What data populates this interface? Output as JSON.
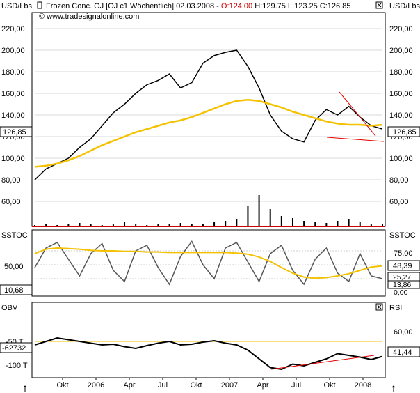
{
  "header": {
    "unit_left": "USD/Lbs",
    "unit_right": "USD/Lbs",
    "title_main": "Frozen Conc. OJ [OJ c1  Wöchentlich] 02.03.2008 - ",
    "open": "O:124.00",
    "high": " H:129.75",
    "low": " L:123.25",
    "close": " C:126.85",
    "source": "© www.tradesignalonline.com"
  },
  "colors": {
    "price_bars": "#000000",
    "bollinger": "#f0c000",
    "ma": "#f4c200",
    "envelope": "#ffffff",
    "panel_bg": "#ffffff",
    "axis_red": "#cc0000",
    "trend_red": "#e00000"
  },
  "price_panel": {
    "y_ticks": [
      "220,00",
      "200,00",
      "180,00",
      "160,00",
      "140,00",
      "120,00",
      "100,00",
      "80,00",
      "60,00"
    ],
    "last_value": "126,85"
  },
  "sstoc_panel": {
    "label_left": "SSTOC",
    "label_right": "SSTOC",
    "y_ticks_left": [
      "50,00"
    ],
    "y_ticks_right": [
      "75,00",
      "50,00",
      "25,00",
      "0,00"
    ],
    "current_left": "10,68",
    "current_right_1": "48,39",
    "current_right_2": "25,27",
    "current_right_3": "13,86"
  },
  "obv_panel": {
    "label_left": "OBV",
    "label_right": "RSI",
    "y_ticks_left": [
      "-50 T",
      "-100 T"
    ],
    "y_ticks_right": [
      "60,00"
    ],
    "current_left": "-62732",
    "current_right": "41,44"
  },
  "x_axis": {
    "labels": [
      "Okt",
      "2006",
      "Apr",
      "Jul",
      "Okt",
      "2007",
      "Apr",
      "Jul",
      "Okt",
      "2008"
    ]
  },
  "chart_data": [
    {
      "type": "line",
      "title": "Frozen Conc. OJ [OJ c1 Wöchentlich]",
      "ylabel": "USD/Lbs",
      "ylim": [
        40,
        235
      ],
      "x": [
        "2005-07",
        "2005-08",
        "2005-09",
        "2005-10",
        "2005-11",
        "2005-12",
        "2006-01",
        "2006-02",
        "2006-03",
        "2006-04",
        "2006-05",
        "2006-06",
        "2006-07",
        "2006-08",
        "2006-09",
        "2006-10",
        "2006-11",
        "2006-12",
        "2007-01",
        "2007-02",
        "2007-03",
        "2007-04",
        "2007-05",
        "2007-06",
        "2007-07",
        "2007-08",
        "2007-09",
        "2007-10",
        "2007-11",
        "2007-12",
        "2008-01",
        "2008-02"
      ],
      "series": [
        {
          "values": [
            80,
            90,
            95,
            100,
            110,
            118,
            130,
            142,
            150,
            160,
            168,
            172,
            178,
            165,
            170,
            188,
            195,
            198,
            200,
            185,
            165,
            140,
            125,
            118,
            115,
            135,
            145,
            140,
            148,
            138,
            130,
            127
          ]
        },
        {
          "values": [
            92,
            93,
            95,
            98,
            102,
            107,
            112,
            116,
            120,
            124,
            127,
            130,
            133,
            135,
            138,
            142,
            146,
            150,
            153,
            154,
            153,
            150,
            147,
            143,
            140,
            137,
            134,
            132,
            131,
            131,
            130,
            131
          ]
        }
      ],
      "volume": [
        2,
        3,
        2,
        4,
        5,
        3,
        2,
        4,
        6,
        3,
        2,
        4,
        3,
        5,
        4,
        3,
        6,
        8,
        10,
        30,
        45,
        25,
        15,
        12,
        8,
        6,
        5,
        8,
        10,
        6,
        4,
        3
      ]
    },
    {
      "type": "line",
      "title": "SSTOC",
      "ylim": [
        0,
        100
      ],
      "series": [
        {
          "values": [
            45,
            80,
            90,
            60,
            30,
            70,
            88,
            40,
            20,
            75,
            85,
            45,
            15,
            65,
            92,
            50,
            25,
            80,
            90,
            55,
            20,
            70,
            85,
            40,
            15,
            60,
            80,
            35,
            20,
            70,
            30,
            25
          ]
        },
        {
          "values": [
            70,
            78,
            80,
            79,
            78,
            76,
            75,
            75,
            74,
            74,
            73,
            73,
            72,
            72,
            72,
            72,
            72,
            72,
            71,
            69,
            64,
            56,
            45,
            35,
            28,
            26,
            27,
            30,
            34,
            40,
            46,
            48
          ]
        }
      ]
    },
    {
      "type": "line",
      "title": "OBV / RSI",
      "series": [
        {
          "values": [
            -30,
            -20,
            -10,
            -15,
            -20,
            -25,
            -30,
            -28,
            -35,
            -40,
            -32,
            -25,
            -20,
            -30,
            -28,
            -22,
            -18,
            -25,
            -30,
            -45,
            -70,
            -95,
            -100,
            -85,
            -90,
            -80,
            -70,
            -55,
            -60,
            -65,
            -72,
            -63
          ]
        },
        {
          "values": [
            55,
            60,
            62,
            58,
            55,
            60,
            62,
            58,
            56,
            60,
            63,
            58,
            55,
            60,
            62,
            56,
            52,
            58,
            60,
            50,
            38,
            30,
            28,
            32,
            35,
            40,
            45,
            42,
            44,
            40,
            38,
            41
          ]
        }
      ]
    }
  ]
}
